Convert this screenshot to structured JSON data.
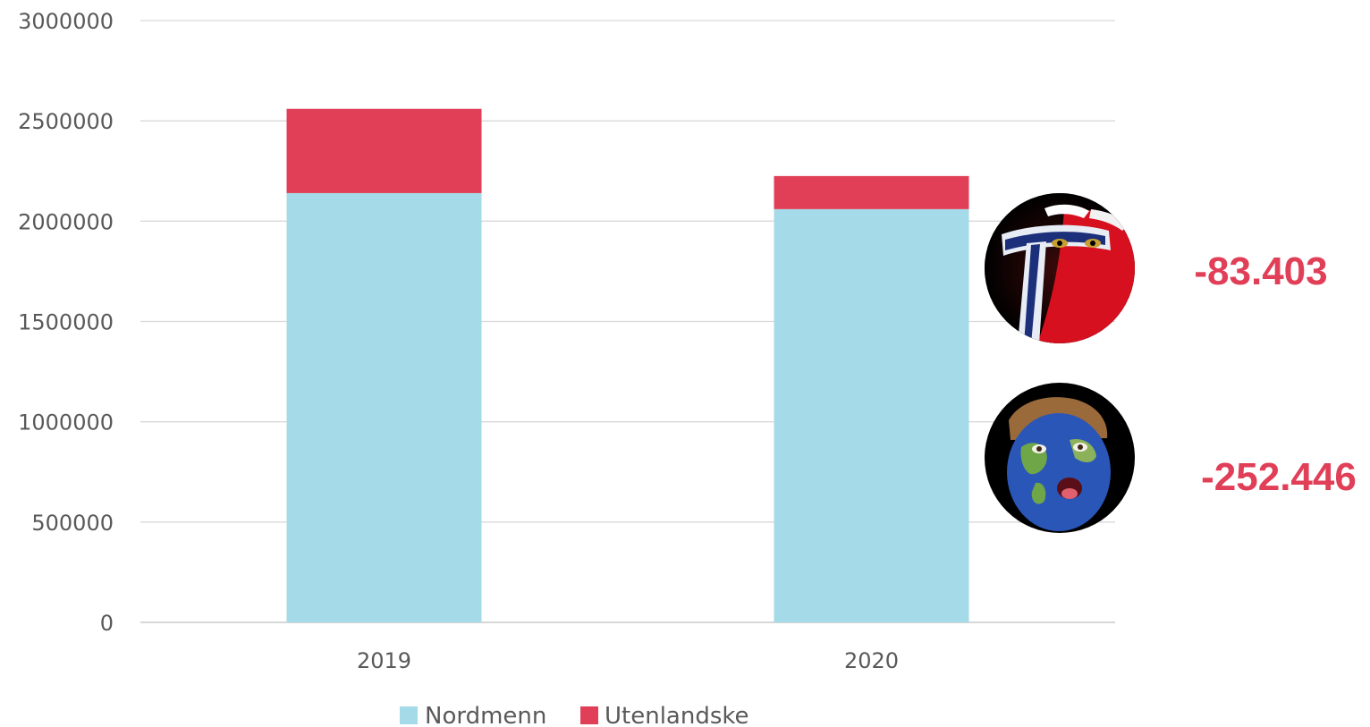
{
  "chart_data": {
    "type": "bar",
    "stacked": true,
    "categories": [
      "2019",
      "2020"
    ],
    "series": [
      {
        "name": "Nordmenn",
        "values": [
          2140000,
          2060000
        ],
        "color": "#a5dbe8"
      },
      {
        "name": "Utenlandske",
        "values": [
          420000,
          165000
        ],
        "color": "#e03f57"
      }
    ],
    "ylim": [
      0,
      3000000
    ],
    "yticks": [
      "0",
      "500000",
      "1000000",
      "1500000",
      "2000000",
      "2500000",
      "3000000"
    ],
    "grid": true,
    "legend_position": "bottom",
    "annotations": [
      {
        "label": "-83.403",
        "color": "#e03f57",
        "icon": "norwegian-flag-face-icon"
      },
      {
        "label": "-252.446",
        "color": "#e03f57",
        "icon": "world-map-face-icon"
      }
    ]
  }
}
